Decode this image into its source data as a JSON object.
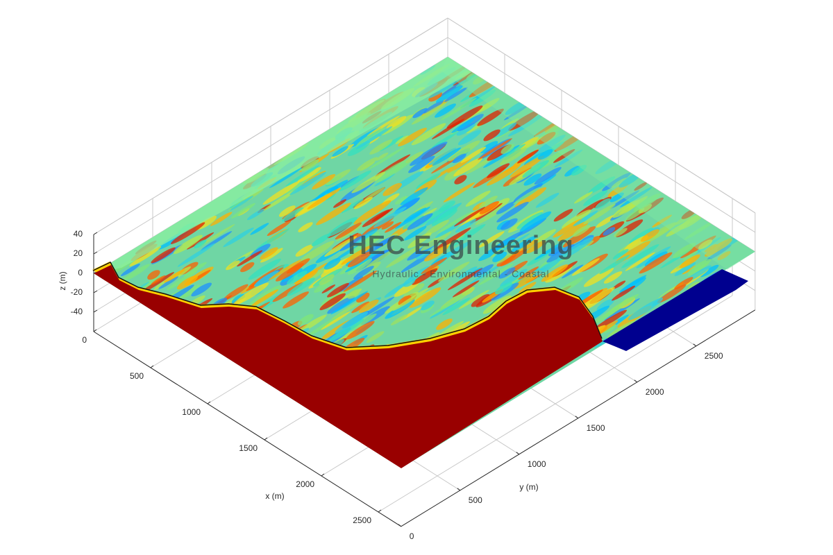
{
  "chart_data": {
    "type": "surface3d",
    "xlabel": "x (m)",
    "ylabel": "y (m)",
    "zlabel": "z (m)",
    "xlim": [
      0,
      2700
    ],
    "ylim": [
      0,
      3000
    ],
    "zlim": [
      -60,
      40
    ],
    "xticks": [
      0,
      500,
      1000,
      1500,
      2000,
      2500
    ],
    "yticks": [
      0,
      500,
      1000,
      1500,
      2000,
      2500
    ],
    "zticks": [
      -40,
      -20,
      0,
      20,
      40
    ],
    "grid": true
  },
  "watermark": {
    "title": "HEC Engineering",
    "subtitle": "Hydraulic - Environmental - Coastal"
  }
}
